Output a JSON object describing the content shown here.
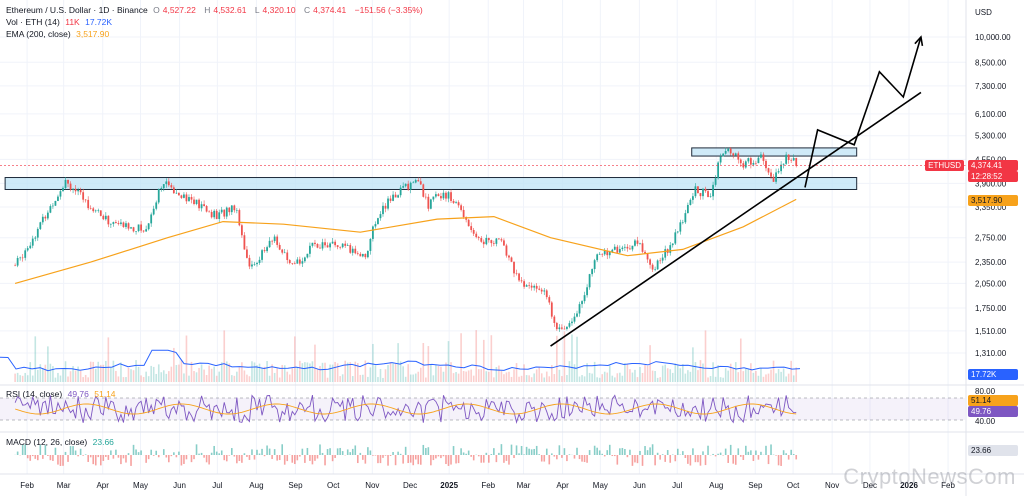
{
  "header": {
    "symbol": "Ethereum / U.S. Dollar · 1D · Binance",
    "open_label": "O",
    "open": "4,527.22",
    "high_label": "H",
    "high": "4,532.61",
    "low_label": "L",
    "low": "4,320.10",
    "close_label": "C",
    "close": "4,374.41",
    "change": "−151.56 (−3.35%)",
    "vol_label": "Vol · ETH (14)",
    "vol_a": "11K",
    "vol_b": "17.72K",
    "ema_label": "EMA (200, close)",
    "ema_value": "3,517.90",
    "currency": "USD"
  },
  "tags": {
    "ticker": "ETHUSD",
    "price": "4,374.41",
    "countdown": "12:28:52",
    "ema": "3,517.90",
    "volume": "17.72K",
    "rsi_a": "51.14",
    "rsi_b": "49.76",
    "macd": "23.66"
  },
  "panes": {
    "rsi_label": "RSI (14, close)",
    "rsi_a": "49.76",
    "rsi_b": "51.14",
    "rsi_levels": [
      "80.00",
      "40.00"
    ],
    "macd_label": "MACD (12, 26, close)",
    "macd_value": "23.66"
  },
  "watermark": "CryptoNewsCom",
  "colors": {
    "up": "#26a69a",
    "down": "#ef5350",
    "ema": "#f7a21b",
    "volume_line": "#2962ff",
    "rsi": "#7e57c2",
    "zone_fill": "#bfe3f5",
    "zone_stroke": "#1e2a3a"
  },
  "chart_data": {
    "type": "candlestick",
    "y_axis_ticks": [
      "10,000.00",
      "8,500.00",
      "7,300.00",
      "6,100.00",
      "5,300.00",
      "4,550.00",
      "3,900.00",
      "3,350.00",
      "2,750.00",
      "2,350.00",
      "2,050.00",
      "1,750.00",
      "1,510.00",
      "1,310.00"
    ],
    "x_axis_ticks": [
      "Feb",
      "Mar",
      "Apr",
      "May",
      "Jun",
      "Jul",
      "Aug",
      "Sep",
      "Oct",
      "Nov",
      "Dec",
      "2025",
      "Feb",
      "Mar",
      "Apr",
      "May",
      "Jun",
      "Jul",
      "Aug",
      "Sep",
      "Oct",
      "Nov",
      "Dec",
      "2026",
      "Feb"
    ],
    "price_path": [
      {
        "date": "2024-02-01",
        "close": 2300
      },
      {
        "date": "2024-02-15",
        "close": 2750
      },
      {
        "date": "2024-03-01",
        "close": 3400
      },
      {
        "date": "2024-03-12",
        "close": 4000
      },
      {
        "date": "2024-03-25",
        "close": 3550
      },
      {
        "date": "2024-04-15",
        "close": 3050
      },
      {
        "date": "2024-05-01",
        "close": 2950
      },
      {
        "date": "2024-05-15",
        "close": 2900
      },
      {
        "date": "2024-05-27",
        "close": 3900
      },
      {
        "date": "2024-06-10",
        "close": 3700
      },
      {
        "date": "2024-06-25",
        "close": 3400
      },
      {
        "date": "2024-07-10",
        "close": 3150
      },
      {
        "date": "2024-07-25",
        "close": 3400
      },
      {
        "date": "2024-08-05",
        "close": 2250
      },
      {
        "date": "2024-08-25",
        "close": 2750
      },
      {
        "date": "2024-09-07",
        "close": 2250
      },
      {
        "date": "2024-09-27",
        "close": 2650
      },
      {
        "date": "2024-10-15",
        "close": 2600
      },
      {
        "date": "2024-11-05",
        "close": 2450
      },
      {
        "date": "2024-11-15",
        "close": 3200
      },
      {
        "date": "2024-12-01",
        "close": 3700
      },
      {
        "date": "2024-12-16",
        "close": 4000
      },
      {
        "date": "2024-12-25",
        "close": 3400
      },
      {
        "date": "2025-01-06",
        "close": 3700
      },
      {
        "date": "2025-01-20",
        "close": 3300
      },
      {
        "date": "2025-02-03",
        "close": 2700
      },
      {
        "date": "2025-02-20",
        "close": 2700
      },
      {
        "date": "2025-03-10",
        "close": 2000
      },
      {
        "date": "2025-03-25",
        "close": 2000
      },
      {
        "date": "2025-04-09",
        "close": 1480
      },
      {
        "date": "2025-04-25",
        "close": 1800
      },
      {
        "date": "2025-05-09",
        "close": 2500
      },
      {
        "date": "2025-05-25",
        "close": 2550
      },
      {
        "date": "2025-06-10",
        "close": 2650
      },
      {
        "date": "2025-06-22",
        "close": 2250
      },
      {
        "date": "2025-07-10",
        "close": 2800
      },
      {
        "date": "2025-07-25",
        "close": 3750
      },
      {
        "date": "2025-08-05",
        "close": 3600
      },
      {
        "date": "2025-08-15",
        "close": 4700
      },
      {
        "date": "2025-08-23",
        "close": 4800
      },
      {
        "date": "2025-09-01",
        "close": 4400
      },
      {
        "date": "2025-09-15",
        "close": 4600
      },
      {
        "date": "2025-09-25",
        "close": 3950
      },
      {
        "date": "2025-10-06",
        "close": 4700
      },
      {
        "date": "2025-10-13",
        "close": 4374.41
      }
    ],
    "ema200": [
      {
        "date": "2024-02-01",
        "value": 2050
      },
      {
        "date": "2024-04-01",
        "value": 2350
      },
      {
        "date": "2024-06-01",
        "value": 2750
      },
      {
        "date": "2024-07-15",
        "value": 3050
      },
      {
        "date": "2024-09-01",
        "value": 3000
      },
      {
        "date": "2024-11-01",
        "value": 2850
      },
      {
        "date": "2025-01-01",
        "value": 3100
      },
      {
        "date": "2025-02-15",
        "value": 3150
      },
      {
        "date": "2025-04-01",
        "value": 2750
      },
      {
        "date": "2025-06-01",
        "value": 2450
      },
      {
        "date": "2025-07-15",
        "value": 2550
      },
      {
        "date": "2025-09-01",
        "value": 2950
      },
      {
        "date": "2025-10-13",
        "value": 3517.9
      }
    ],
    "zones": [
      {
        "from": "2024-02-01",
        "to": "2025-11-30",
        "low": 3750,
        "high": 4050
      },
      {
        "from": "2025-07-30",
        "to": "2025-11-30",
        "low": 4650,
        "high": 4900
      }
    ],
    "trendline": [
      {
        "date": "2025-04-01",
        "price": 1370
      },
      {
        "date": "2026-01-20",
        "price": 7000
      }
    ],
    "projection": [
      {
        "date": "2025-10-20",
        "price": 3800
      },
      {
        "date": "2025-10-30",
        "price": 5500
      },
      {
        "date": "2025-11-28",
        "price": 5000
      },
      {
        "date": "2025-12-18",
        "price": 8000
      },
      {
        "date": "2026-01-06",
        "price": 6800
      },
      {
        "date": "2026-01-20",
        "price": 10000
      }
    ]
  }
}
